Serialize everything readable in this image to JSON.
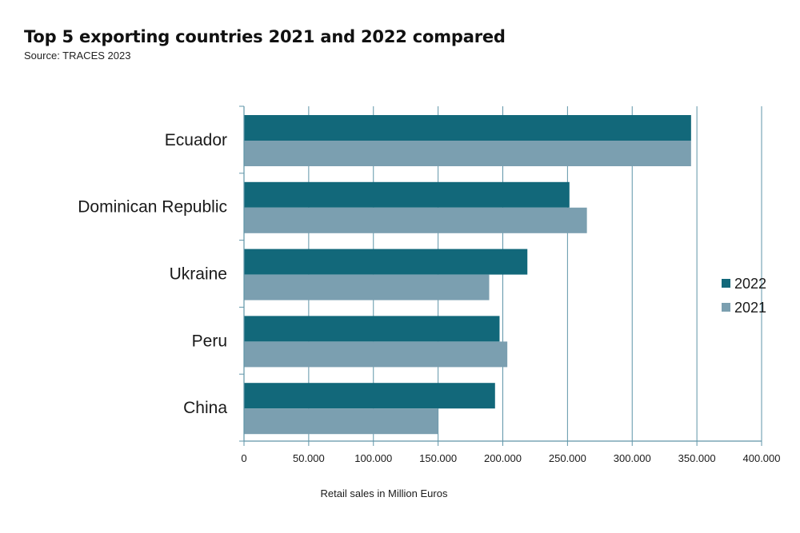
{
  "chart_data": {
    "type": "bar",
    "orientation": "horizontal",
    "title": "Top 5 exporting countries 2021 and 2022 compared",
    "subtitle": "Source: TRACES 2023",
    "xlabel": "Retail sales in Million Euros",
    "ylabel": "",
    "categories": [
      "Ecuador",
      "Dominican Republic",
      "Ukraine",
      "Peru",
      "China"
    ],
    "series": [
      {
        "name": "2022",
        "color": "#12687a",
        "values": [
          345500,
          251500,
          219000,
          197500,
          194000
        ]
      },
      {
        "name": "2021",
        "color": "#7b9fb0",
        "values": [
          345500,
          265000,
          189500,
          203500,
          150000
        ]
      }
    ],
    "xlim": [
      0,
      400000
    ],
    "xticks": [
      0,
      50000,
      100000,
      150000,
      200000,
      250000,
      300000,
      350000,
      400000
    ],
    "xtick_labels": [
      "0",
      "50.000",
      "100.000",
      "150.000",
      "200.000",
      "250.000",
      "300.000",
      "350.000",
      "400.000"
    ],
    "grid": "vertical",
    "legend_position": "right",
    "colors": {
      "gridline": "#5f95a8",
      "axis": "#5f95a8"
    }
  }
}
